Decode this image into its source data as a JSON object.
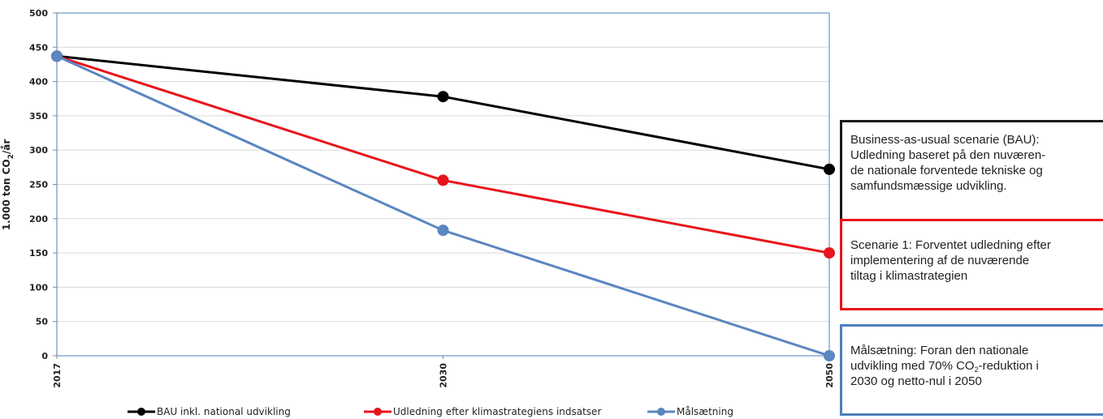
{
  "chart_data": {
    "type": "line",
    "ylabel_main": "1.000 ton CO",
    "ylabel_sub": "2",
    "ylabel_tail": "/år",
    "x": [
      "2017",
      "2030",
      "2050"
    ],
    "y_ticks": [
      "0",
      "50",
      "100",
      "150",
      "200",
      "250",
      "300",
      "350",
      "400",
      "450",
      "500"
    ],
    "ylim": [
      0,
      500
    ],
    "grid": true,
    "legend_position": "bottom",
    "series": [
      {
        "name": "BAU inkl. national udvikling",
        "color": "#000000",
        "values": [
          437,
          378,
          272
        ]
      },
      {
        "name": "Udledning efter klimastrategiens indsatser",
        "color": "#e8141c",
        "values": [
          437,
          256,
          150
        ]
      },
      {
        "name": "Målsætning",
        "color": "#5b86c0",
        "values": [
          437,
          183,
          0
        ]
      }
    ]
  },
  "notes": {
    "bau": "Business-as-usual scenarie (BAU):\nUdledning baseret på den nuværen-\nde nationale forventede tekniske og\nsamfundsmæssige udvikling.",
    "scenario1": "Scenarie 1: Forventet udledning efter\nimplementering af de nuværende\ntiltag i klimastrategien",
    "goal_part1": "Målsætning: Foran den nationale\nudvikling med 70% CO",
    "goal_sub": "2",
    "goal_part2": "-reduktion i\n2030 og netto-nul i 2050"
  },
  "colors": {
    "grid": "#d9d9d9",
    "plot_border": "#6a94c4"
  }
}
